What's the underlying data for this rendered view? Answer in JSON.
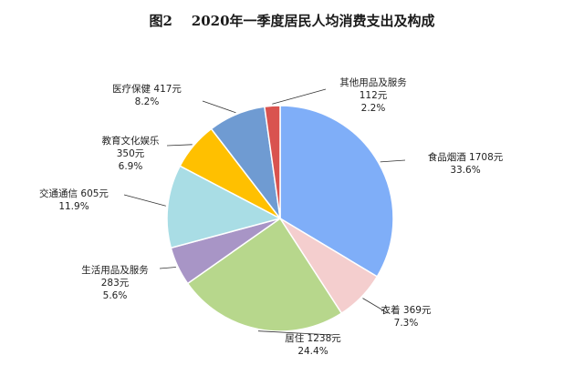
{
  "chart_data": {
    "type": "pie",
    "title": "图2    2020年一季度居民人均消费支出及构成",
    "start_angle_deg": 0,
    "direction": "clockwise",
    "slices": [
      {
        "name": "食品烟酒",
        "value": 1708,
        "value_label": "1708元",
        "percent_label": "33.6%",
        "color": "#7FAEF8"
      },
      {
        "name": "衣着",
        "value": 369,
        "value_label": "369元",
        "percent_label": "7.3%",
        "color": "#F4CECE"
      },
      {
        "name": "居住",
        "value": 1238,
        "value_label": "1238元",
        "percent_label": "24.4%",
        "color": "#B7D78C"
      },
      {
        "name": "生活用品及服务",
        "value": 283,
        "value_label": "283元",
        "percent_label": "5.6%",
        "color": "#A895C6"
      },
      {
        "name": "交通通信",
        "value": 605,
        "value_label": "605元",
        "percent_label": "11.9%",
        "color": "#A9DDE5"
      },
      {
        "name": "教育文化娱乐",
        "value": 350,
        "value_label": "350元",
        "percent_label": "6.9%",
        "color": "#FFC000"
      },
      {
        "name": "医疗保健",
        "value": 417,
        "value_label": "417元",
        "percent_label": "8.2%",
        "color": "#6F9BD2"
      },
      {
        "name": "其他用品及服务",
        "value": 112,
        "value_label": "112元",
        "percent_label": "2.2%",
        "color": "#D9534F"
      }
    ]
  }
}
